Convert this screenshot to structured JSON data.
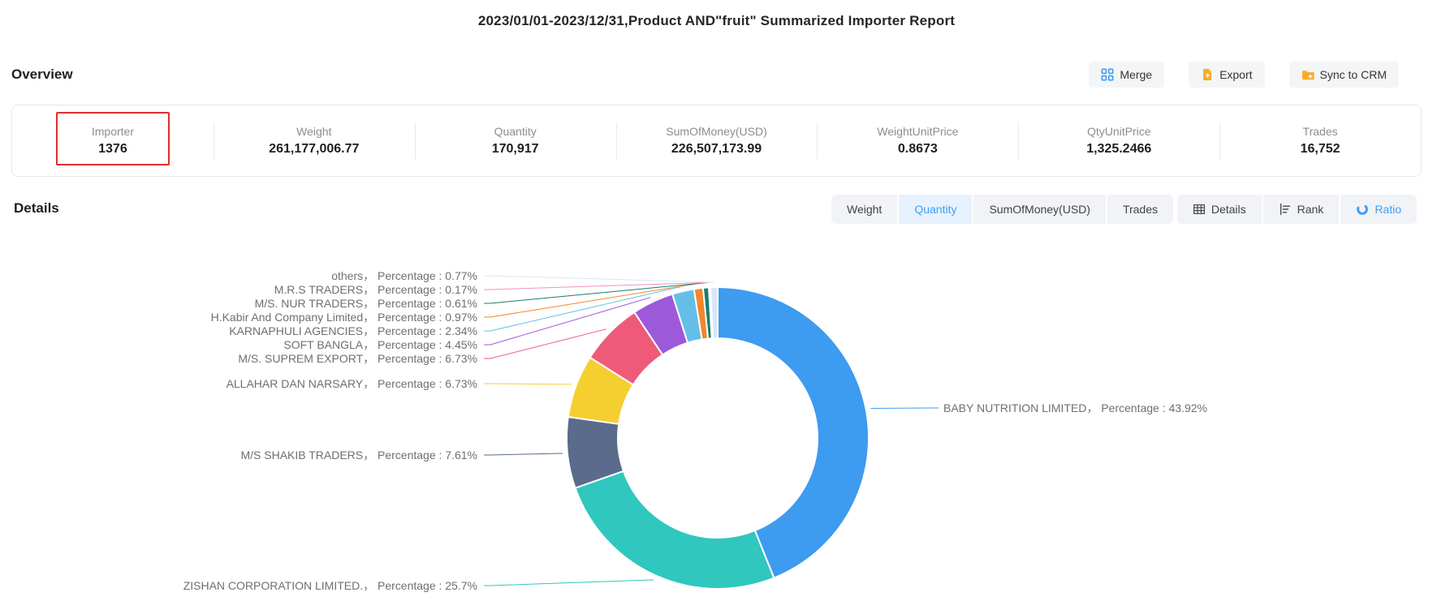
{
  "title": "2023/01/01-2023/12/31,Product AND\"fruit\" Summarized Importer Report",
  "overview": {
    "heading": "Overview",
    "actions": [
      {
        "label": "Merge",
        "icon": "merge-icon"
      },
      {
        "label": "Export",
        "icon": "export-icon"
      },
      {
        "label": "Sync to CRM",
        "icon": "sync-folder-icon"
      }
    ],
    "stats": [
      {
        "label": "Importer",
        "value": "1376",
        "highlighted": true
      },
      {
        "label": "Weight",
        "value": "261,177,006.77"
      },
      {
        "label": "Quantity",
        "value": "170,917"
      },
      {
        "label": "SumOfMoney(USD)",
        "value": "226,507,173.99"
      },
      {
        "label": "WeightUnitPrice",
        "value": "0.8673"
      },
      {
        "label": "QtyUnitPrice",
        "value": "1,325.2466"
      },
      {
        "label": "Trades",
        "value": "16,752"
      }
    ]
  },
  "details": {
    "heading": "Details",
    "metric_tabs": [
      {
        "label": "Weight",
        "active": false
      },
      {
        "label": "Quantity",
        "active": true
      },
      {
        "label": "SumOfMoney(USD)",
        "active": false
      },
      {
        "label": "Trades",
        "active": false
      }
    ],
    "view_buttons": [
      {
        "label": "Details",
        "icon": "table-icon",
        "active": false
      },
      {
        "label": "Rank",
        "icon": "rank-icon",
        "active": false
      },
      {
        "label": "Ratio",
        "icon": "pie-ratio-icon",
        "active": true
      }
    ]
  },
  "chart_data": {
    "type": "pie",
    "subtype": "donut",
    "title": "",
    "unit": "%",
    "separator": "，",
    "percentage_label": "Percentage : ",
    "legend_position": "none",
    "series": [
      {
        "name": "BABY NUTRITION LIMITED",
        "value": 43.92,
        "color": "#3d9bf0"
      },
      {
        "name": "ZISHAN CORPORATION LIMITED.",
        "value": 25.7,
        "color": "#2fc7be"
      },
      {
        "name": "M/S SHAKIB TRADERS",
        "value": 7.61,
        "color": "#5a6b8c"
      },
      {
        "name": "ALLAHAR DAN NARSARY",
        "value": 6.73,
        "color": "#f5cf2f"
      },
      {
        "name": "M/S. SUPREM EXPORT",
        "value": 6.73,
        "color": "#ee5a78"
      },
      {
        "name": "SOFT BANGLA",
        "value": 4.45,
        "color": "#9c59da"
      },
      {
        "name": "KARNAPHULI AGENCIES",
        "value": 2.34,
        "color": "#64bfe8"
      },
      {
        "name": "H.Kabir And Company Limited",
        "value": 0.97,
        "color": "#f5862b"
      },
      {
        "name": "M/S. NUR TRADERS",
        "value": 0.61,
        "color": "#177e70"
      },
      {
        "name": "M.R.S TRADERS",
        "value": 0.17,
        "color": "#f48fc0"
      },
      {
        "name": "others",
        "value": 0.77,
        "color": "#d9e6f7"
      }
    ]
  },
  "colors": {
    "accent_blue": "#3d9df5",
    "highlight_red": "#e02e2e",
    "icon_orange": "#f9ab27",
    "tab_active_bg": "#e7f2fe",
    "button_bg": "#f4f5f7"
  }
}
